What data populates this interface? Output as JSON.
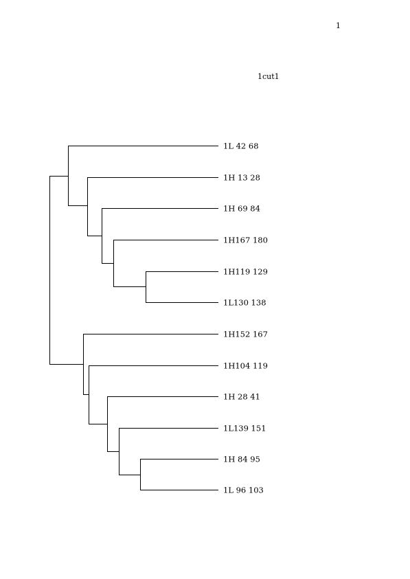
{
  "page": {
    "number": "1",
    "title": "1cut1"
  },
  "dendrogram": {
    "leaves": [
      "1L 42 68",
      "1H 13 28",
      "1H 69 84",
      "1H167 180",
      "1H119 129",
      "1L130 138",
      "1H152 167",
      "1H104 119",
      "1H 28 41",
      "1L139 151",
      "1H 84 95",
      "1L 96 103"
    ]
  }
}
